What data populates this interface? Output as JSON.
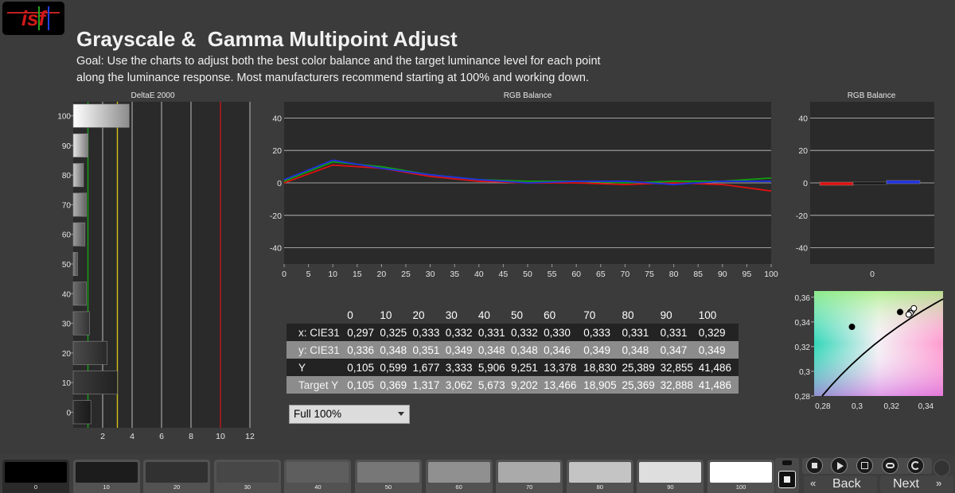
{
  "header": {
    "title": "Grayscale &  Gamma Multipoint Adjust",
    "goal_line1": "Goal: Use the charts to adjust both the best color balance and the target luminance level for each point",
    "goal_line2": "along the luminance response. Most manufacturers recommend starting at 100% and working down.",
    "logo_text": "isf"
  },
  "colors": {
    "background": "#3b3b3b",
    "plot_bg": "#2a2a2a",
    "red": "#e01010",
    "green": "#10a010",
    "blue": "#2030e0",
    "threshold_green": "#18a018",
    "threshold_yellow": "#d4c21a",
    "threshold_red": "#c01818"
  },
  "chart_data": [
    {
      "type": "bar",
      "title": "DeltaE 2000",
      "orientation": "horizontal",
      "categories": [
        "100",
        "90",
        "80",
        "70",
        "60",
        "50",
        "40",
        "30",
        "20",
        "10",
        "0"
      ],
      "values": [
        3.8,
        1.0,
        0.7,
        0.9,
        0.8,
        0.3,
        0.9,
        1.1,
        2.3,
        3.0,
        1.2
      ],
      "xlim": [
        0,
        12
      ],
      "x_ticks": [
        "2",
        "4",
        "6",
        "8",
        "10",
        "12"
      ],
      "thresholds": [
        1,
        3,
        10
      ],
      "grid": true
    },
    {
      "type": "line",
      "title": "RGB Balance",
      "x": [
        0,
        10,
        20,
        30,
        40,
        50,
        60,
        70,
        80,
        90,
        100
      ],
      "x_ticks": [
        "0",
        "5",
        "10",
        "15",
        "20",
        "25",
        "30",
        "35",
        "40",
        "45",
        "50",
        "55",
        "60",
        "65",
        "70",
        "75",
        "80",
        "85",
        "90",
        "95",
        "100"
      ],
      "y_ticks": [
        "40",
        "20",
        "0",
        "-20",
        "-40"
      ],
      "ylim": [
        -50,
        50
      ],
      "series": [
        {
          "color": "red",
          "values": [
            0,
            11,
            9,
            4,
            1,
            0,
            0,
            -1,
            0,
            -1,
            -5
          ]
        },
        {
          "color": "green",
          "values": [
            1,
            13,
            10,
            5,
            2,
            1,
            1,
            0,
            1,
            1,
            3
          ]
        },
        {
          "color": "blue",
          "values": [
            2,
            14,
            9,
            5,
            2,
            0,
            1,
            1,
            -1,
            1,
            1
          ]
        }
      ],
      "grid": true
    },
    {
      "type": "bar",
      "title": "RGB Balance",
      "y_ticks": [
        "40",
        "20",
        "0",
        "-20",
        "-40"
      ],
      "x_label": "0",
      "ylim": [
        -50,
        50
      ],
      "series": [
        {
          "color": "red",
          "values": [
            -1
          ]
        },
        {
          "color": "green",
          "values": [
            0
          ]
        },
        {
          "color": "blue",
          "values": [
            1
          ]
        }
      ],
      "grid": true
    },
    {
      "type": "scatter",
      "title": "",
      "xlim": [
        0.275,
        0.35
      ],
      "ylim": [
        0.28,
        0.365
      ],
      "x_ticks": [
        "0,28",
        "0,3",
        "0,32",
        "0,34"
      ],
      "y_ticks": [
        "0,36",
        "0,34",
        "0,32",
        "0,3",
        "0,28"
      ],
      "points": [
        {
          "x": 0.297,
          "y": 0.336
        },
        {
          "x": 0.325,
          "y": 0.348
        },
        {
          "x": 0.331,
          "y": 0.348
        },
        {
          "x": 0.332,
          "y": 0.349
        },
        {
          "x": 0.333,
          "y": 0.351
        },
        {
          "x": 0.331,
          "y": 0.347
        },
        {
          "x": 0.33,
          "y": 0.346
        }
      ]
    },
    {
      "type": "table",
      "columns": [
        "",
        "0",
        "10",
        "20",
        "30",
        "40",
        "50",
        "60",
        "70",
        "80",
        "90",
        "100"
      ],
      "rows": [
        [
          "x: CIE31",
          "0,297",
          "0,325",
          "0,333",
          "0,332",
          "0,331",
          "0,332",
          "0,330",
          "0,333",
          "0,331",
          "0,331",
          "0,329"
        ],
        [
          "y: CIE31",
          "0,336",
          "0,348",
          "0,351",
          "0,349",
          "0,348",
          "0,348",
          "0,346",
          "0,349",
          "0,348",
          "0,347",
          "0,349"
        ],
        [
          "Y",
          "0,105",
          "0,599",
          "1,677",
          "3,333",
          "5,906",
          "9,251",
          "13,378",
          "18,830",
          "25,389",
          "32,855",
          "41,486"
        ],
        [
          "Target Y",
          "0,105",
          "0,369",
          "1,317",
          "3,062",
          "5,673",
          "9,202",
          "13,466",
          "18,905",
          "25,369",
          "32,888",
          "41,486"
        ]
      ]
    }
  ],
  "range_select": {
    "value": "Full  100%"
  },
  "patches": [
    {
      "label": "0",
      "color": "#000000"
    },
    {
      "label": "10",
      "color": "#1c1c1c"
    },
    {
      "label": "20",
      "color": "#313131"
    },
    {
      "label": "30",
      "color": "#474747"
    },
    {
      "label": "40",
      "color": "#5e5e5e"
    },
    {
      "label": "50",
      "color": "#777777"
    },
    {
      "label": "60",
      "color": "#909090"
    },
    {
      "label": "70",
      "color": "#aaaaaa"
    },
    {
      "label": "80",
      "color": "#c4c4c4"
    },
    {
      "label": "90",
      "color": "#dedede"
    },
    {
      "label": "100",
      "color": "#ffffff"
    }
  ],
  "nav": {
    "back_label": "Back",
    "next_label": "Next"
  }
}
